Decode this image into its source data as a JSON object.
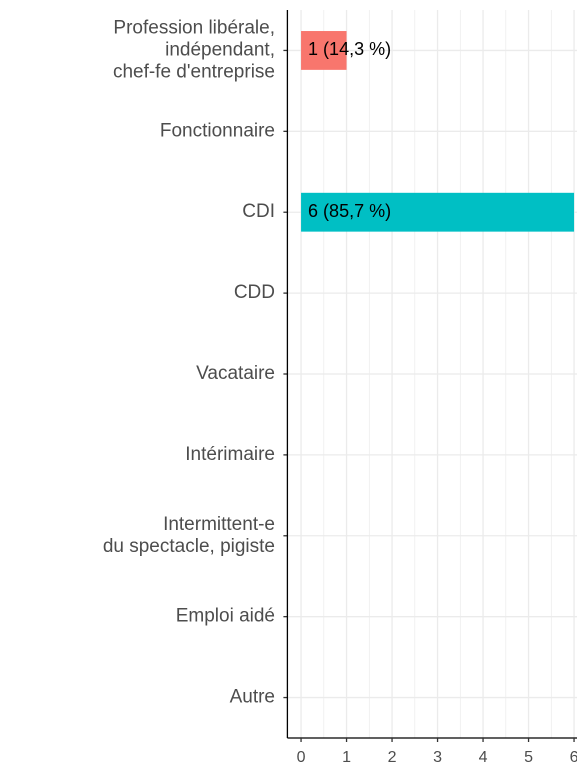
{
  "chart_data": {
    "type": "bar",
    "orientation": "horizontal",
    "categories": [
      "Profession libérale,\nindépendant,\nchef-fe d'entreprise",
      "Fonctionnaire",
      "CDI",
      "CDD",
      "Vacataire",
      "Intérimaire",
      "Intermittent-e\ndu spectacle, pigiste",
      "Emploi aidé",
      "Autre"
    ],
    "values": [
      1,
      0,
      6,
      0,
      0,
      0,
      0,
      0,
      0
    ],
    "value_labels": [
      "1 (14,3 %)",
      null,
      "6 (85,7 %)",
      null,
      null,
      null,
      null,
      null,
      null
    ],
    "colors": [
      "#F8766D",
      null,
      "#00BFC4",
      null,
      null,
      null,
      null,
      null,
      null
    ],
    "xlim": [
      -0.3,
      6.3
    ],
    "xticks": [
      0,
      1,
      2,
      3,
      4,
      5,
      6
    ],
    "xminor": [
      0.5,
      1.5,
      2.5,
      3.5,
      4.5,
      5.5
    ],
    "grid": true
  }
}
